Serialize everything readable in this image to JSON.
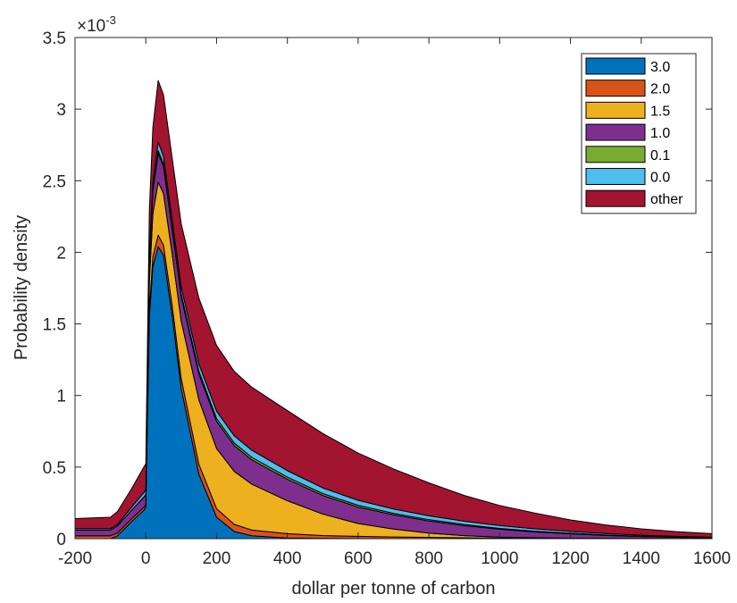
{
  "chart_data": {
    "type": "area",
    "xlabel": "dollar per tonne of carbon",
    "ylabel": "Probability density",
    "y_exponent_label": "×10",
    "y_exponent_power": "-3",
    "xlim": [
      -200,
      1600
    ],
    "ylim": [
      0,
      3.5
    ],
    "x_ticks": [
      "-200",
      "0",
      "200",
      "400",
      "600",
      "800",
      "1000",
      "1200",
      "1400",
      "1600"
    ],
    "y_ticks": [
      "0",
      "0.5",
      "1",
      "1.5",
      "2",
      "2.5",
      "3",
      "3.5"
    ],
    "x_tick_values": [
      -200,
      0,
      200,
      400,
      600,
      800,
      1000,
      1200,
      1400,
      1600
    ],
    "y_tick_values": [
      0,
      0.5,
      1,
      1.5,
      2,
      2.5,
      3,
      3.5
    ],
    "legend_position": "top-right",
    "stacked": true,
    "x": [
      -200,
      -100,
      -80,
      -40,
      -5,
      0,
      10,
      20,
      35,
      50,
      75,
      100,
      150,
      200,
      250,
      300,
      400,
      500,
      600,
      700,
      800,
      900,
      1000,
      1100,
      1200,
      1300,
      1400,
      1500,
      1600
    ],
    "series": [
      {
        "name": "3.0",
        "color": "#0072BD",
        "values": [
          0,
          0,
          0.02,
          0.12,
          0.2,
          0.22,
          1.55,
          1.9,
          2.04,
          1.98,
          1.55,
          1.05,
          0.45,
          0.15,
          0.05,
          0.02,
          0.005,
          0.002,
          0.001,
          0,
          0,
          0,
          0,
          0,
          0,
          0,
          0,
          0,
          0
        ]
      },
      {
        "name": "2.0",
        "color": "#D95319",
        "values": [
          0.02,
          0.02,
          0.02,
          0.02,
          0.02,
          0.02,
          0.05,
          0.07,
          0.08,
          0.07,
          0.07,
          0.07,
          0.07,
          0.06,
          0.05,
          0.04,
          0.03,
          0.02,
          0.015,
          0.012,
          0.009,
          0.006,
          0.004,
          0.003,
          0.002,
          0.002,
          0.001,
          0.001,
          0.001
        ]
      },
      {
        "name": "1.5",
        "color": "#EDB120",
        "values": [
          0,
          0,
          0,
          0,
          0,
          0,
          0.2,
          0.3,
          0.37,
          0.36,
          0.36,
          0.4,
          0.45,
          0.42,
          0.37,
          0.32,
          0.23,
          0.15,
          0.09,
          0.055,
          0.03,
          0.015,
          0.007,
          0.004,
          0.002,
          0.001,
          0.001,
          0,
          0
        ]
      },
      {
        "name": "1.0",
        "color": "#7E2F8E",
        "values": [
          0.04,
          0.04,
          0.05,
          0.06,
          0.07,
          0.07,
          0.12,
          0.16,
          0.2,
          0.19,
          0.17,
          0.17,
          0.18,
          0.19,
          0.18,
          0.17,
          0.15,
          0.13,
          0.115,
          0.1,
          0.085,
          0.07,
          0.055,
          0.04,
          0.03,
          0.02,
          0.013,
          0.008,
          0.005
        ]
      },
      {
        "name": "0.1",
        "color": "#77AC30",
        "values": [
          0,
          0,
          0,
          0,
          0.003,
          0.003,
          0.01,
          0.015,
          0.02,
          0.02,
          0.02,
          0.02,
          0.02,
          0.02,
          0.018,
          0.017,
          0.015,
          0.013,
          0.012,
          0.01,
          0.009,
          0.008,
          0.006,
          0.005,
          0.004,
          0.003,
          0.002,
          0.002,
          0.001
        ]
      },
      {
        "name": "0.0",
        "color": "#4DBEEE",
        "values": [
          0.01,
          0.01,
          0.01,
          0.02,
          0.03,
          0.03,
          0.04,
          0.05,
          0.06,
          0.05,
          0.05,
          0.05,
          0.05,
          0.05,
          0.05,
          0.05,
          0.045,
          0.04,
          0.035,
          0.03,
          0.027,
          0.023,
          0.02,
          0.017,
          0.013,
          0.01,
          0.007,
          0.005,
          0.003
        ]
      },
      {
        "name": "other",
        "color": "#A2142F",
        "values": [
          0.07,
          0.08,
          0.09,
          0.13,
          0.18,
          0.18,
          0.32,
          0.38,
          0.43,
          0.43,
          0.43,
          0.44,
          0.46,
          0.46,
          0.45,
          0.44,
          0.42,
          0.38,
          0.33,
          0.28,
          0.23,
          0.18,
          0.14,
          0.11,
          0.08,
          0.06,
          0.045,
          0.033,
          0.025
        ]
      }
    ]
  }
}
